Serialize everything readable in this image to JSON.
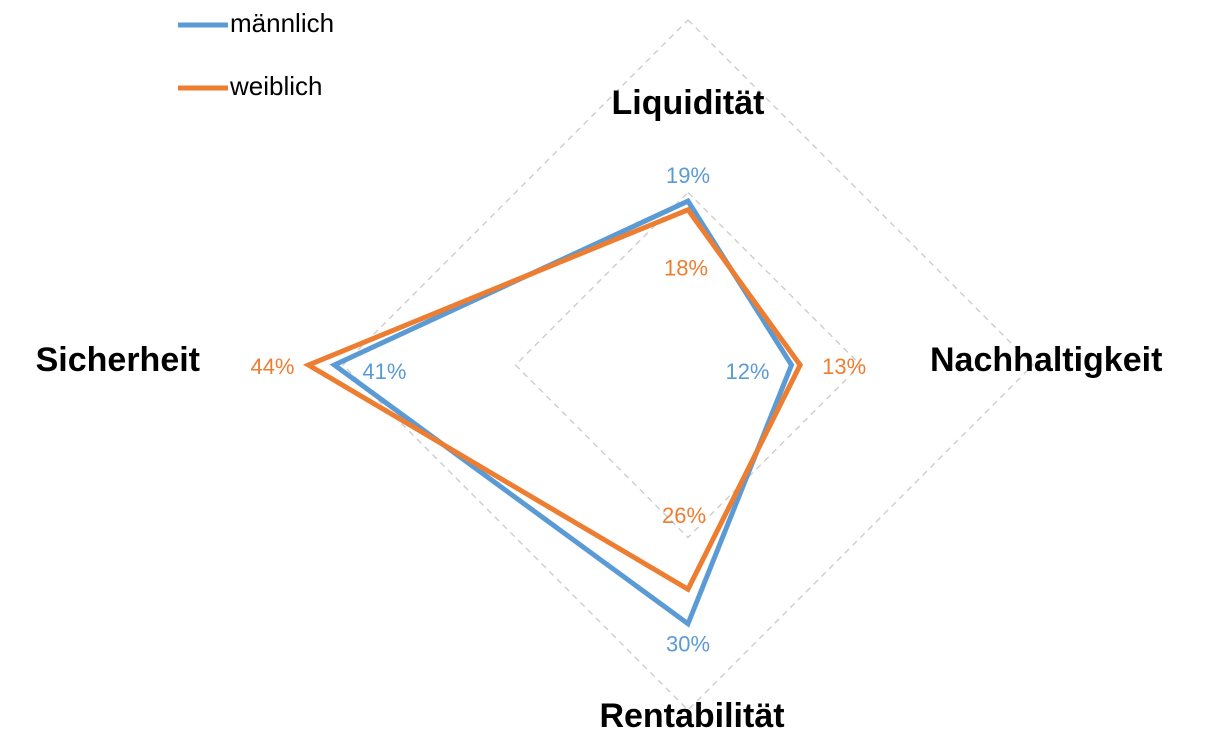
{
  "chart_data": {
    "type": "radar",
    "categories": [
      "Liquidität",
      "Nachhaltigkeit",
      "Rentabilität",
      "Sicherheit"
    ],
    "series": [
      {
        "name": "männlich",
        "color": "#5b9bd5",
        "values": [
          19,
          12,
          30,
          41
        ],
        "value_labels": [
          "19%",
          "12%",
          "30%",
          "41%"
        ]
      },
      {
        "name": "weiblich",
        "color": "#ed7d31",
        "values": [
          18,
          13,
          26,
          44
        ],
        "value_labels": [
          "18%",
          "13%",
          "26%",
          "44%"
        ]
      }
    ],
    "ylim": [
      0,
      40
    ],
    "yticks": [
      0,
      20,
      40
    ],
    "grid": true,
    "legend": "top-left"
  }
}
